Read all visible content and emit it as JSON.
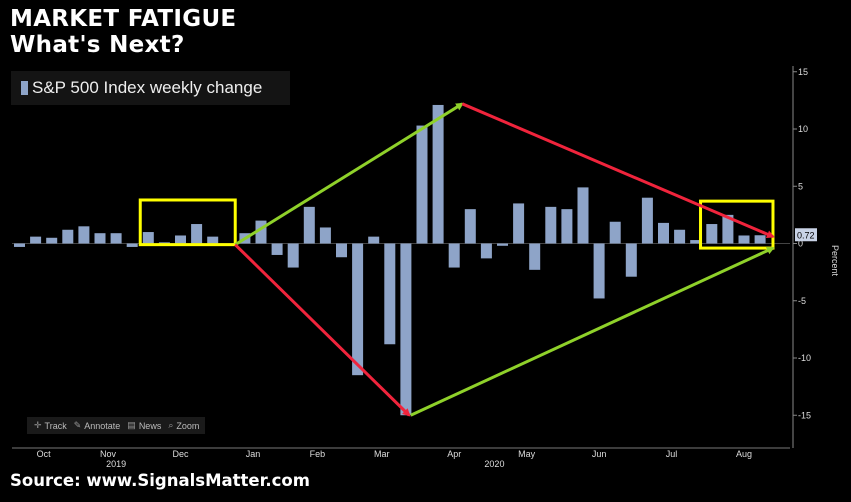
{
  "header": {
    "title_line1": "MARKET FATIGUE",
    "title_line2": "What's Next?"
  },
  "legend": {
    "label": "S&P 500 Index weekly change"
  },
  "source": "Source: www.SignalsMatter.com",
  "toolbar": {
    "items": [
      {
        "label": "Track",
        "icon": "crosshair-icon"
      },
      {
        "label": "Annotate",
        "icon": "pencil-icon"
      },
      {
        "label": "News",
        "icon": "news-icon"
      },
      {
        "label": "Zoom",
        "icon": "magnifier-icon"
      }
    ]
  },
  "chart_data": {
    "type": "bar",
    "title": "",
    "ylabel": "Percent",
    "ylim": [
      -16.5,
      15.5
    ],
    "yticks": [
      15,
      10,
      5,
      0,
      -5,
      -10,
      -15
    ],
    "ytick_labels": [
      "15",
      "10",
      "5",
      "0",
      "-5",
      "-10",
      "-15"
    ],
    "last_value_label": "0.72",
    "x_month_labels": [
      {
        "label": "Oct",
        "at_week": 1.5
      },
      {
        "label": "Nov",
        "at_week": 5.5
      },
      {
        "label": "Dec",
        "at_week": 10
      },
      {
        "label": "Jan",
        "at_week": 14.5
      },
      {
        "label": "Feb",
        "at_week": 18.5
      },
      {
        "label": "Mar",
        "at_week": 22.5
      },
      {
        "label": "Apr",
        "at_week": 27
      },
      {
        "label": "May",
        "at_week": 31.5
      },
      {
        "label": "Jun",
        "at_week": 36
      },
      {
        "label": "Jul",
        "at_week": 40.5
      },
      {
        "label": "Aug",
        "at_week": 45
      }
    ],
    "x_year_labels": [
      {
        "label": "2019",
        "at_week": 6
      },
      {
        "label": "2020",
        "at_week": 29.5
      }
    ],
    "series": [
      {
        "name": "S&P 500 Index weekly change",
        "color": "#8ea4c8",
        "values": [
          -0.3,
          0.6,
          0.5,
          1.2,
          1.5,
          0.9,
          0.9,
          -0.3,
          1.0,
          0.1,
          0.7,
          1.7,
          0.6,
          -0.1,
          0.9,
          2.0,
          -1.0,
          -2.1,
          3.2,
          1.4,
          -1.2,
          -11.5,
          0.6,
          -8.8,
          -15.0,
          10.3,
          12.1,
          -2.1,
          3.0,
          -1.3,
          -0.2,
          3.5,
          -2.3,
          3.2,
          3.0,
          4.9,
          -4.8,
          1.9,
          -2.9,
          4.0,
          1.8,
          1.2,
          0.3,
          1.7,
          2.5,
          0.7,
          0.72
        ]
      }
    ],
    "annotations": {
      "yellow_boxes": [
        {
          "from_week": 7.5,
          "to_week": 13.4,
          "y_top": 3.8,
          "y_bottom": -0.1
        },
        {
          "from_week": 42.3,
          "to_week": 46.8,
          "y_top": 3.7,
          "y_bottom": -0.4
        }
      ],
      "green_arrows": [
        {
          "from": [
            13.4,
            -0.1
          ],
          "to": [
            27.5,
            12.2
          ]
        },
        {
          "from": [
            24.3,
            -15.0
          ],
          "to": [
            46.8,
            -0.4
          ]
        }
      ],
      "red_arrows": [
        {
          "from": [
            13.4,
            -0.1
          ],
          "to": [
            24.2,
            -15.0
          ]
        },
        {
          "from": [
            27.5,
            12.2
          ],
          "to": [
            46.8,
            0.6
          ]
        }
      ],
      "colors": {
        "green": "#8fd12a",
        "red": "#f0243c",
        "yellow": "#ffff00"
      }
    }
  }
}
